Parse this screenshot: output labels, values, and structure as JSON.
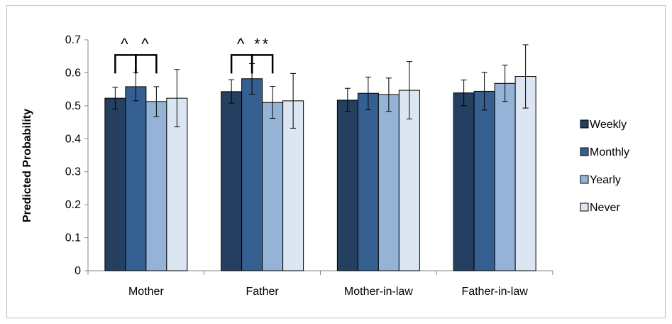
{
  "chart_data": {
    "type": "bar",
    "title": "",
    "xlabel": "",
    "ylabel": "Predicted Probability",
    "ylim": [
      0,
      0.7
    ],
    "yticks": [
      "0",
      "0.1",
      "0.2",
      "0.3",
      "0.4",
      "0.5",
      "0.6",
      "0.7"
    ],
    "categories": [
      "Mother",
      "Father",
      "Mother-in-law",
      "Father-in-law"
    ],
    "series": [
      {
        "name": "Weekly",
        "color": "#243f60",
        "values": [
          0.523,
          0.543,
          0.517,
          0.539
        ],
        "err_low": [
          0.49,
          0.508,
          0.483,
          0.5
        ],
        "err_high": [
          0.556,
          0.579,
          0.553,
          0.578
        ]
      },
      {
        "name": "Monthly",
        "color": "#365f91",
        "values": [
          0.558,
          0.582,
          0.538,
          0.544
        ],
        "err_low": [
          0.515,
          0.535,
          0.488,
          0.487
        ],
        "err_high": [
          0.601,
          0.628,
          0.587,
          0.601
        ]
      },
      {
        "name": "Yearly",
        "color": "#95b3d7",
        "values": [
          0.513,
          0.51,
          0.534,
          0.568
        ],
        "err_low": [
          0.467,
          0.462,
          0.483,
          0.513
        ],
        "err_high": [
          0.558,
          0.559,
          0.584,
          0.623
        ]
      },
      {
        "name": "Never",
        "color": "#dce6f2",
        "values": [
          0.523,
          0.515,
          0.547,
          0.589
        ],
        "err_low": [
          0.436,
          0.432,
          0.46,
          0.493
        ],
        "err_high": [
          0.61,
          0.598,
          0.634,
          0.685
        ]
      }
    ],
    "legend_position": "right",
    "annotations": [
      {
        "label": "^",
        "category": 0,
        "from_series": 0,
        "to_series": 1,
        "bracket_y": 0.654
      },
      {
        "label": "^",
        "category": 0,
        "from_series": 1,
        "to_series": 2,
        "bracket_y": 0.654
      },
      {
        "label": "^",
        "category": 1,
        "from_series": 0,
        "to_series": 1,
        "bracket_y": 0.654
      },
      {
        "label": "**",
        "category": 1,
        "from_series": 1,
        "to_series": 2,
        "bracket_y": 0.654
      }
    ]
  }
}
